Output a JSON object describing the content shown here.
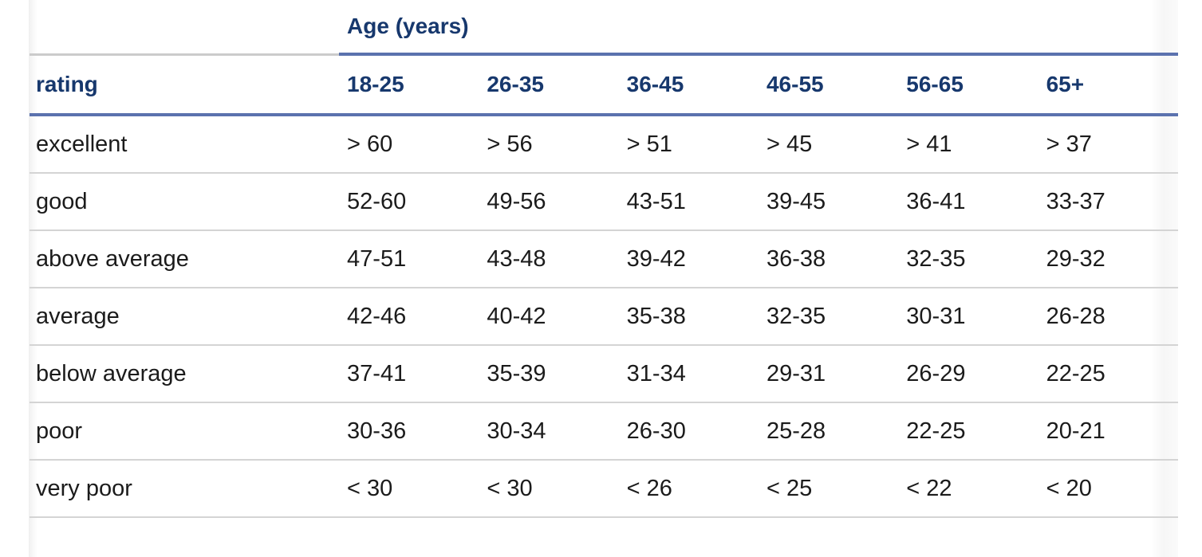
{
  "table": {
    "group_header": "Age (years)",
    "columns": [
      "rating",
      "18-25",
      "26-35",
      "36-45",
      "46-55",
      "56-65",
      "65+"
    ],
    "rows": [
      {
        "label": "excellent",
        "values": [
          "> 60",
          "> 56",
          "> 51",
          "> 45",
          "> 41",
          "> 37"
        ]
      },
      {
        "label": "good",
        "values": [
          "52-60",
          "49-56",
          "43-51",
          "39-45",
          "36-41",
          "33-37"
        ]
      },
      {
        "label": "above average",
        "values": [
          "47-51",
          "43-48",
          "39-42",
          "36-38",
          "32-35",
          "29-32"
        ]
      },
      {
        "label": "average",
        "values": [
          "42-46",
          "40-42",
          "35-38",
          "32-35",
          "30-31",
          "26-28"
        ]
      },
      {
        "label": "below average",
        "values": [
          "37-41",
          "35-39",
          "31-34",
          "29-31",
          "26-29",
          "22-25"
        ]
      },
      {
        "label": "poor",
        "values": [
          "30-36",
          "30-34",
          "26-30",
          "25-28",
          "22-25",
          "20-21"
        ]
      },
      {
        "label": "very poor",
        "values": [
          "< 30",
          "< 30",
          "< 26",
          "< 25",
          "< 22",
          "< 20"
        ]
      }
    ],
    "colors": {
      "header_text": "#17386d",
      "body_text": "#1b1b1b",
      "accent_rule": "#5b72ae",
      "row_separator": "#d4d4d4",
      "corner_rule": "#cbcbcb"
    }
  }
}
